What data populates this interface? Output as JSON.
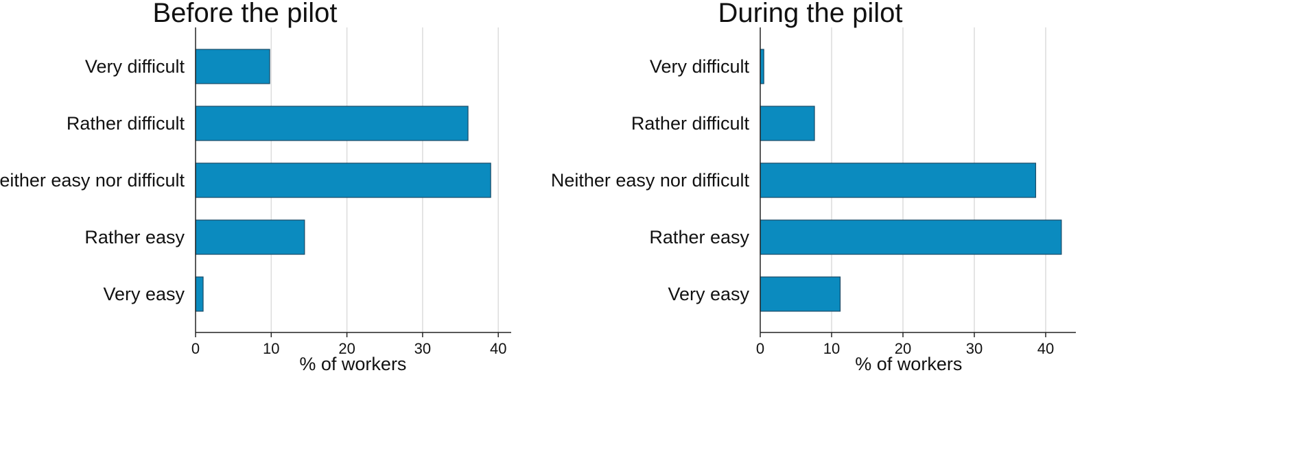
{
  "chart_data": [
    {
      "type": "bar",
      "orientation": "horizontal",
      "title": "Before the pilot",
      "categories": [
        "Very difficult",
        "Rather difficult",
        "Neither easy nor difficult",
        "Rather easy",
        "Very easy"
      ],
      "values": [
        9.8,
        36.0,
        39.0,
        14.4,
        1.0
      ],
      "xlabel": "% of workers",
      "ylabel": "",
      "xticks": [
        0,
        10,
        20,
        30,
        40
      ],
      "xlim": [
        0,
        41.5
      ],
      "grid": true,
      "bar_color": "#0b8bbf"
    },
    {
      "type": "bar",
      "orientation": "horizontal",
      "title": "During the pilot",
      "categories": [
        "Very difficult",
        "Rather difficult",
        "Neither easy nor difficult",
        "Rather easy",
        "Very easy"
      ],
      "values": [
        0.5,
        7.6,
        38.6,
        42.2,
        11.2
      ],
      "xlabel": "% of workers",
      "ylabel": "",
      "xticks": [
        0,
        10,
        20,
        30,
        40
      ],
      "xlim": [
        0,
        42.5
      ],
      "grid": true,
      "bar_color": "#0b8bbf"
    }
  ]
}
